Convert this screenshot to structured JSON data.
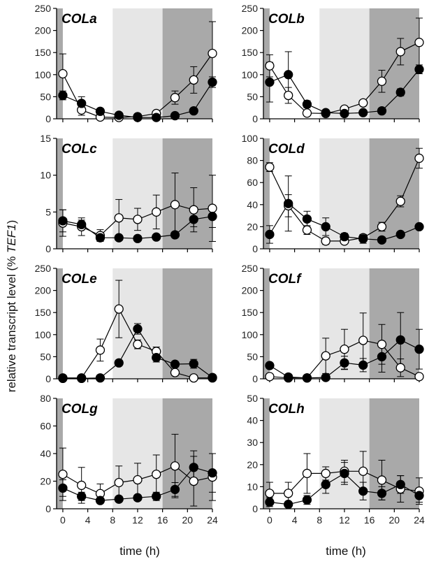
{
  "figure": {
    "ylabel_main": "relative transcript level (% ",
    "ylabel_italic": "TEF1",
    "ylabel_close": ")",
    "xlabel": "time (h)"
  },
  "chart_data": [
    {
      "type": "line",
      "title": "COLa",
      "xlabel": "time (h)",
      "ylabel": "relative transcript level (% TEF1)",
      "xlim": [
        -1,
        24
      ],
      "ylim": [
        0,
        250
      ],
      "x_ticks": [
        0,
        4,
        8,
        12,
        16,
        20,
        24
      ],
      "y_ticks": [
        0,
        50,
        100,
        150,
        200,
        250
      ],
      "shading": [
        {
          "from": -1,
          "to": 0,
          "shade": "dark"
        },
        {
          "from": 8,
          "to": 16,
          "shade": "light"
        },
        {
          "from": 16,
          "to": 24,
          "shade": "dark"
        }
      ],
      "x": [
        0,
        3,
        6,
        9,
        12,
        15,
        18,
        21,
        24
      ],
      "series": [
        {
          "name": "open",
          "marker": "open-circle",
          "values": [
            102,
            20,
            4,
            3,
            5,
            12,
            48,
            88,
            148
          ],
          "errors": [
            45,
            12,
            3,
            2,
            2,
            4,
            15,
            30,
            72
          ]
        },
        {
          "name": "filled",
          "marker": "filled-circle",
          "values": [
            53,
            35,
            17,
            8,
            3,
            3,
            7,
            18,
            83
          ],
          "errors": [
            10,
            15,
            4,
            3,
            2,
            2,
            3,
            6,
            12
          ]
        }
      ]
    },
    {
      "type": "line",
      "title": "COLb",
      "xlabel": "time (h)",
      "ylabel": "relative transcript level (% TEF1)",
      "xlim": [
        -1,
        24
      ],
      "ylim": [
        0,
        250
      ],
      "x_ticks": [
        0,
        4,
        8,
        12,
        16,
        20,
        24
      ],
      "y_ticks": [
        0,
        50,
        100,
        150,
        200,
        250
      ],
      "shading": [
        {
          "from": -1,
          "to": 0,
          "shade": "dark"
        },
        {
          "from": 8,
          "to": 16,
          "shade": "light"
        },
        {
          "from": 16,
          "to": 24,
          "shade": "dark"
        }
      ],
      "x": [
        0,
        3,
        6,
        9,
        12,
        15,
        18,
        21,
        24
      ],
      "series": [
        {
          "name": "open",
          "marker": "open-circle",
          "values": [
            120,
            53,
            13,
            12,
            22,
            36,
            85,
            152,
            173
          ],
          "errors": [
            25,
            18,
            4,
            3,
            5,
            6,
            25,
            30,
            55
          ]
        },
        {
          "name": "filled",
          "marker": "filled-circle",
          "values": [
            83,
            100,
            33,
            14,
            12,
            14,
            18,
            60,
            112
          ],
          "errors": [
            45,
            52,
            8,
            4,
            3,
            3,
            5,
            8,
            10
          ]
        }
      ]
    },
    {
      "type": "line",
      "title": "COLc",
      "xlabel": "time (h)",
      "ylabel": "relative transcript level (% TEF1)",
      "xlim": [
        -1,
        24
      ],
      "ylim": [
        0,
        15
      ],
      "x_ticks": [
        0,
        4,
        8,
        12,
        16,
        20,
        24
      ],
      "y_ticks": [
        0,
        5,
        10,
        15
      ],
      "shading": [
        {
          "from": -1,
          "to": 0,
          "shade": "dark"
        },
        {
          "from": 8,
          "to": 16,
          "shade": "light"
        },
        {
          "from": 16,
          "to": 24,
          "shade": "dark"
        }
      ],
      "x": [
        0,
        3,
        6,
        9,
        12,
        15,
        18,
        21,
        24
      ],
      "series": [
        {
          "name": "open",
          "marker": "open-circle",
          "values": [
            3.5,
            3.0,
            1.8,
            4.2,
            4.0,
            5.0,
            6.0,
            5.3,
            5.5
          ],
          "errors": [
            1.8,
            1.2,
            0.8,
            2.5,
            1.5,
            2.3,
            4.3,
            3.0,
            4.5
          ]
        },
        {
          "name": "filled",
          "marker": "filled-circle",
          "values": [
            3.8,
            3.3,
            1.5,
            1.5,
            1.4,
            1.6,
            1.9,
            4.0,
            4.4
          ],
          "errors": [
            1.5,
            0.6,
            0.4,
            0.3,
            0.3,
            0.3,
            0.4,
            1.0,
            1.5
          ]
        }
      ]
    },
    {
      "type": "line",
      "title": "COLd",
      "xlabel": "time (h)",
      "ylabel": "relative transcript level (% TEF1)",
      "xlim": [
        -1,
        24
      ],
      "ylim": [
        0,
        100
      ],
      "x_ticks": [
        0,
        4,
        8,
        12,
        16,
        20,
        24
      ],
      "y_ticks": [
        0,
        20,
        40,
        60,
        80,
        100
      ],
      "shading": [
        {
          "from": -1,
          "to": 0,
          "shade": "dark"
        },
        {
          "from": 8,
          "to": 16,
          "shade": "light"
        },
        {
          "from": 16,
          "to": 24,
          "shade": "dark"
        }
      ],
      "x": [
        0,
        3,
        6,
        9,
        12,
        15,
        18,
        21,
        24
      ],
      "series": [
        {
          "name": "open",
          "marker": "open-circle",
          "values": [
            74,
            39,
            17,
            7,
            7,
            10,
            20,
            43,
            82
          ],
          "errors": [
            4,
            10,
            4,
            3,
            2,
            3,
            4,
            5,
            9
          ]
        },
        {
          "name": "filled",
          "marker": "filled-circle",
          "values": [
            13,
            41,
            27,
            20,
            11,
            9,
            8,
            13,
            20
          ],
          "errors": [
            8,
            25,
            7,
            8,
            3,
            4,
            2,
            2,
            2
          ]
        }
      ]
    },
    {
      "type": "line",
      "title": "COLe",
      "xlabel": "time (h)",
      "ylabel": "relative transcript level (% TEF1)",
      "xlim": [
        -1,
        24
      ],
      "ylim": [
        0,
        250
      ],
      "x_ticks": [
        0,
        4,
        8,
        12,
        16,
        20,
        24
      ],
      "y_ticks": [
        0,
        50,
        100,
        150,
        200,
        250
      ],
      "shading": [
        {
          "from": -1,
          "to": 0,
          "shade": "dark"
        },
        {
          "from": 8,
          "to": 16,
          "shade": "light"
        },
        {
          "from": 16,
          "to": 24,
          "shade": "dark"
        }
      ],
      "x": [
        0,
        3,
        6,
        9,
        12,
        15,
        18,
        21,
        24
      ],
      "series": [
        {
          "name": "open",
          "marker": "open-circle",
          "values": [
            2,
            2,
            65,
            158,
            78,
            62,
            14,
            2,
            2
          ],
          "errors": [
            1,
            1,
            25,
            65,
            10,
            10,
            5,
            1,
            1
          ]
        },
        {
          "name": "filled",
          "marker": "filled-circle",
          "values": [
            1,
            1,
            2,
            36,
            113,
            48,
            33,
            34,
            3
          ],
          "errors": [
            1,
            1,
            1,
            5,
            12,
            10,
            6,
            10,
            2
          ]
        }
      ]
    },
    {
      "type": "line",
      "title": "COLf",
      "xlabel": "time (h)",
      "ylabel": "relative transcript level (% TEF1)",
      "xlim": [
        -1,
        24
      ],
      "ylim": [
        0,
        250
      ],
      "x_ticks": [
        0,
        4,
        8,
        12,
        16,
        20,
        24
      ],
      "y_ticks": [
        0,
        50,
        100,
        150,
        200,
        250
      ],
      "shading": [
        {
          "from": -1,
          "to": 0,
          "shade": "dark"
        },
        {
          "from": 8,
          "to": 16,
          "shade": "light"
        },
        {
          "from": 16,
          "to": 24,
          "shade": "dark"
        }
      ],
      "x": [
        0,
        3,
        6,
        9,
        12,
        15,
        18,
        21,
        24
      ],
      "series": [
        {
          "name": "open",
          "marker": "open-circle",
          "values": [
            5,
            2,
            2,
            52,
            67,
            87,
            78,
            25,
            5
          ],
          "errors": [
            3,
            1,
            1,
            40,
            45,
            62,
            45,
            20,
            3
          ]
        },
        {
          "name": "filled",
          "marker": "filled-circle",
          "values": [
            30,
            4,
            2,
            3,
            36,
            31,
            50,
            88,
            67
          ],
          "errors": [
            3,
            2,
            1,
            2,
            15,
            15,
            35,
            62,
            45
          ]
        }
      ]
    },
    {
      "type": "line",
      "title": "COLg",
      "xlabel": "time (h)",
      "ylabel": "relative transcript level (% TEF1)",
      "xlim": [
        -1,
        24
      ],
      "ylim": [
        0,
        80
      ],
      "x_ticks": [
        0,
        4,
        8,
        12,
        16,
        20,
        24
      ],
      "y_ticks": [
        0,
        20,
        40,
        60,
        80
      ],
      "shading": [
        {
          "from": -1,
          "to": 0,
          "shade": "dark"
        },
        {
          "from": 8,
          "to": 16,
          "shade": "light"
        },
        {
          "from": 16,
          "to": 24,
          "shade": "dark"
        }
      ],
      "x": [
        0,
        3,
        6,
        9,
        12,
        15,
        18,
        21,
        24
      ],
      "series": [
        {
          "name": "open",
          "marker": "open-circle",
          "values": [
            25,
            17,
            11,
            19,
            21,
            25,
            31,
            20,
            23
          ],
          "errors": [
            19,
            13,
            7,
            12,
            12,
            14,
            23,
            18,
            17
          ]
        },
        {
          "name": "filled",
          "marker": "filled-circle",
          "values": [
            15,
            9,
            6,
            7,
            8,
            9,
            14,
            30,
            26
          ],
          "errors": [
            6,
            3,
            1,
            2,
            2,
            3,
            5,
            12,
            14
          ]
        }
      ]
    },
    {
      "type": "line",
      "title": "COLh",
      "xlabel": "time (h)",
      "ylabel": "relative transcript level (% TEF1)",
      "xlim": [
        -1,
        24
      ],
      "ylim": [
        0,
        50
      ],
      "x_ticks": [
        0,
        4,
        8,
        12,
        16,
        20,
        24
      ],
      "y_ticks": [
        0,
        10,
        20,
        30,
        40,
        50
      ],
      "shading": [
        {
          "from": -1,
          "to": 0,
          "shade": "dark"
        },
        {
          "from": 8,
          "to": 16,
          "shade": "light"
        },
        {
          "from": 16,
          "to": 24,
          "shade": "dark"
        }
      ],
      "x": [
        0,
        3,
        6,
        9,
        12,
        15,
        18,
        21,
        24
      ],
      "series": [
        {
          "name": "open",
          "marker": "open-circle",
          "values": [
            7,
            7,
            16,
            16,
            17,
            17,
            13,
            9,
            8
          ],
          "errors": [
            5,
            5,
            9,
            3,
            5,
            9,
            9,
            6,
            6
          ]
        },
        {
          "name": "filled",
          "marker": "filled-circle",
          "values": [
            3,
            2,
            4,
            11,
            16,
            8,
            7,
            11,
            6
          ],
          "errors": [
            2,
            1,
            2,
            4,
            5,
            4,
            3,
            4,
            3
          ]
        }
      ]
    }
  ]
}
